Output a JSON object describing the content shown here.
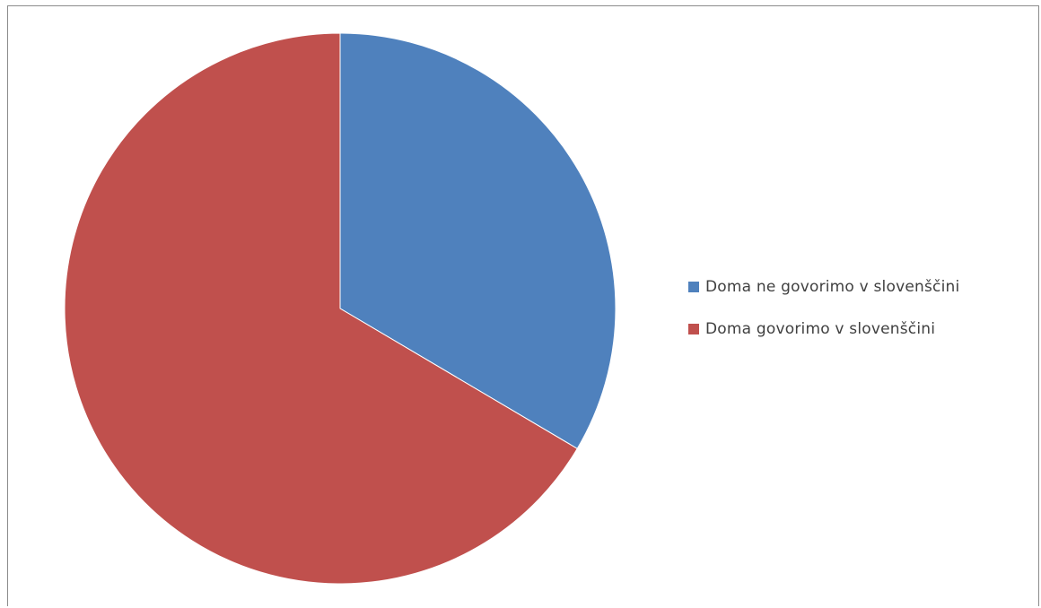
{
  "chart_data": {
    "type": "pie",
    "title": "",
    "series": [
      {
        "name": "",
        "slices": [
          {
            "label": "Doma ne govorimo v slovenščini",
            "value": 33.5,
            "color": "#4f81bd"
          },
          {
            "label": "Doma govorimo v slovenščini",
            "value": 66.5,
            "color": "#c0504d"
          }
        ]
      }
    ],
    "start_angle": "12 o'clock",
    "direction": "clockwise",
    "legend_position": "right"
  }
}
